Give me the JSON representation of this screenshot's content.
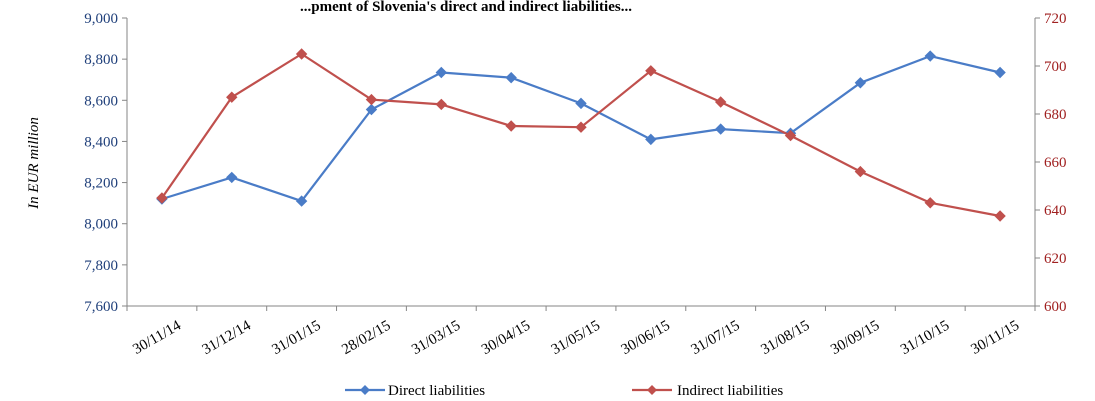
{
  "chart_data": {
    "type": "line",
    "title": "...pment of Slovenia's direct and indirect liabilities...",
    "ylabel": "In EUR million",
    "categories": [
      "30/11/14",
      "31/12/14",
      "31/01/15",
      "28/02/15",
      "31/03/15",
      "30/04/15",
      "31/05/15",
      "30/06/15",
      "31/07/15",
      "31/08/15",
      "30/09/15",
      "31/10/15",
      "30/11/15"
    ],
    "y_left": {
      "min": 7600,
      "max": 9000,
      "step": 200,
      "ticks": [
        "7,600",
        "7,800",
        "8,000",
        "8,200",
        "8,400",
        "8,600",
        "8,800",
        "9,000"
      ]
    },
    "y_right": {
      "min": 600,
      "max": 720,
      "step": 20,
      "ticks": [
        "600",
        "620",
        "640",
        "660",
        "680",
        "700",
        "720"
      ]
    },
    "series": [
      {
        "name": "Direct liabilities",
        "axis": "left",
        "color": "#4a7cc7",
        "values": [
          8120,
          8225,
          8110,
          8555,
          8735,
          8710,
          8585,
          8410,
          8460,
          8440,
          8685,
          8815,
          8735
        ]
      },
      {
        "name": "Indirect liabilities",
        "axis": "right",
        "color": "#c0504d",
        "values": [
          645,
          687,
          705,
          686,
          684,
          675,
          674.5,
          698,
          685,
          671,
          656,
          643,
          637.5
        ]
      }
    ],
    "grid": false,
    "legend_position": "bottom"
  }
}
